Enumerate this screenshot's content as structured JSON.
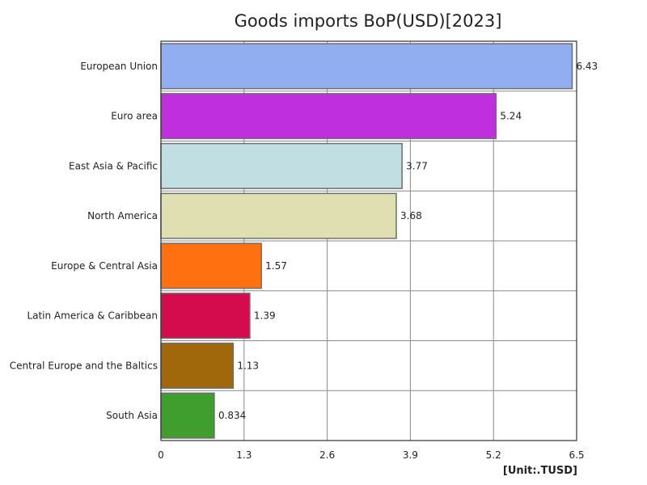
{
  "chart_data": {
    "type": "bar",
    "orientation": "horizontal",
    "title": "Goods imports BoP(USD)[2023]",
    "unit_label": "[Unit:.TUSD]",
    "xlim": [
      0,
      6.5
    ],
    "xticks": [
      "0",
      "1.3",
      "2.6",
      "3.9",
      "5.2",
      "6.5"
    ],
    "xtick_values": [
      0,
      1.3,
      2.6,
      3.9,
      5.2,
      6.5
    ],
    "grid": true,
    "categories": [
      "European Union",
      "Euro area",
      "East Asia & Pacific",
      "North America",
      "Europe & Central Asia",
      "Latin America & Caribbean",
      "Central Europe and the Baltics",
      "South Asia"
    ],
    "values": [
      6.43,
      5.24,
      3.77,
      3.68,
      1.57,
      1.39,
      1.13,
      0.834
    ],
    "value_labels": [
      "6.43",
      "5.24",
      "3.77",
      "3.68",
      "1.57",
      "1.39",
      "1.13",
      "0.834"
    ],
    "colors": [
      "#91aef0",
      "#c02fdd",
      "#c1dfe3",
      "#e0dfb2",
      "#ff7010",
      "#d40b4c",
      "#a0680b",
      "#409e2f"
    ]
  }
}
